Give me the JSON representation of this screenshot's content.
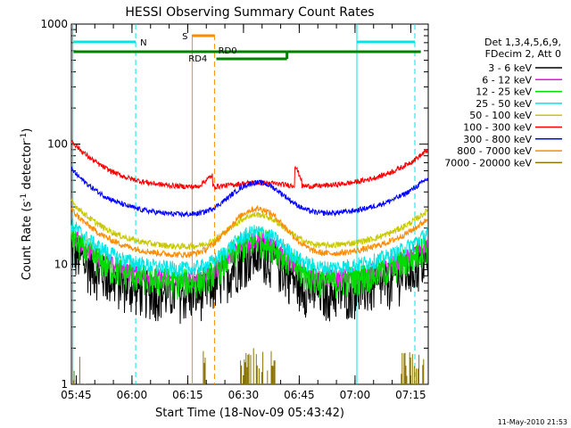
{
  "chart_data": {
    "type": "line",
    "title": "HESSI Observing Summary Count Rates",
    "xlabel": "Start Time (18-Nov-09 05:43:42)",
    "ylabel_main": "Count Rate (s",
    "ylabel_sup1": "-1",
    "ylabel_mid": " detector",
    "ylabel_sup2": "-1",
    "ylabel_end": ")",
    "yscale": "log",
    "ylim": [
      1,
      1000
    ],
    "xlim_minutes": [
      0,
      96
    ],
    "x_ticks": [
      {
        "label": "05:45",
        "minute": 1.3
      },
      {
        "label": "06:00",
        "minute": 16.3
      },
      {
        "label": "06:15",
        "minute": 31.3
      },
      {
        "label": "06:30",
        "minute": 46.3
      },
      {
        "label": "06:45",
        "minute": 61.3
      },
      {
        "label": "07:00",
        "minute": 76.3
      },
      {
        "label": "07:15",
        "minute": 91.3
      }
    ],
    "y_ticks": [
      {
        "label": "1",
        "value": 1
      },
      {
        "label": "10",
        "value": 10
      },
      {
        "label": "100",
        "value": 100
      },
      {
        "label": "1000",
        "value": 1000
      }
    ],
    "legend_header": [
      "Det 1,3,4,5,6,9,",
      "FDecim 2, Att 0"
    ],
    "series": [
      {
        "name": "3 - 6 keV",
        "color": "#000000",
        "base": 5.5,
        "bump": 2.2,
        "noise": 0.45,
        "min": 2.6
      },
      {
        "name": "6 - 12 keV",
        "color": "#ff00ff",
        "base": 7.2,
        "bump": 2.2,
        "noise": 0.18
      },
      {
        "name": "12 - 25 keV",
        "color": "#00dd00",
        "base": 6.8,
        "bump": 2.3,
        "noise": 0.3
      },
      {
        "name": "25 - 50 keV",
        "color": "#00e5e5",
        "base": 8.8,
        "bump": 2.1,
        "noise": 0.15
      },
      {
        "name": "50 - 100 keV",
        "color": "#c8c800",
        "base": 13.5,
        "bump": 1.9,
        "noise": 0.06
      },
      {
        "name": "100 - 300 keV",
        "color": "#ff0000",
        "base": 43,
        "bump": 1.1,
        "noise": 0.05
      },
      {
        "name": "300 - 800 keV",
        "color": "#0000ff",
        "base": 25,
        "bump": 1.9,
        "noise": 0.05
      },
      {
        "name": "800 - 7000 keV",
        "color": "#ff8c00",
        "base": 11.5,
        "bump": 2.5,
        "noise": 0.06
      },
      {
        "name": "7000 - 20000 keV",
        "color": "#8b7500",
        "base": 1,
        "bump": 1,
        "noise": 0
      }
    ],
    "annotations": {
      "N": {
        "label": "N",
        "color": "#00e5e5"
      },
      "S": {
        "label": "S",
        "color": "#ff8c00"
      },
      "RD0": {
        "label": "RD0",
        "color": "#008000"
      },
      "RD4": {
        "label": "RD4",
        "color": "#008000"
      }
    },
    "grid": false,
    "legend_position": "right"
  },
  "footer_timestamp": "11-May-2010 21:53"
}
